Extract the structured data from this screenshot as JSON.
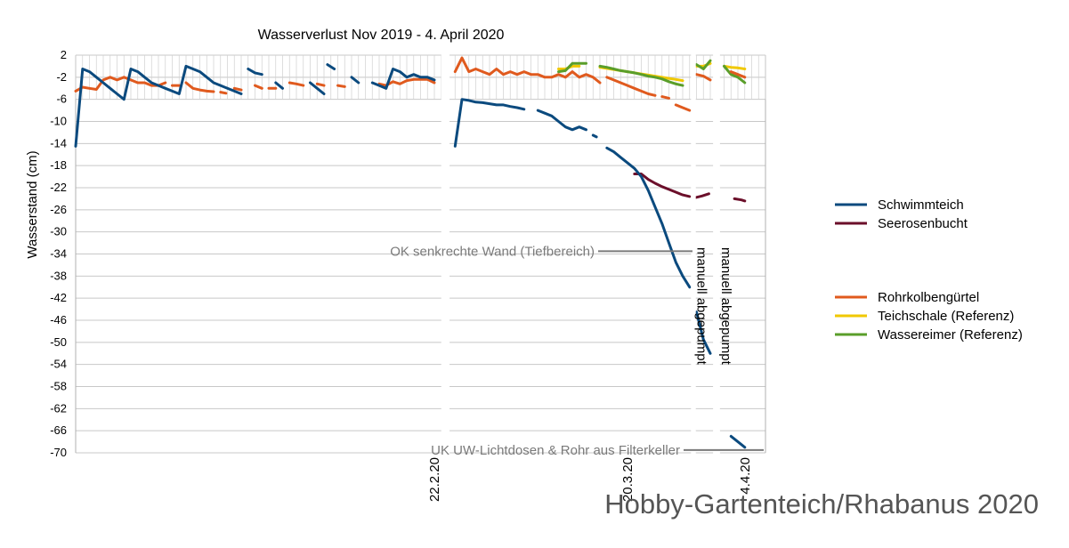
{
  "chart_data": {
    "type": "line",
    "title": "Wasserverlust Nov 2019 - 4. April 2020",
    "ylabel": "Wasserstand (cm)",
    "xlabel": "",
    "ylim": [
      -70,
      2
    ],
    "yticks": [
      2,
      -2,
      -6,
      -10,
      -14,
      -18,
      -22,
      -26,
      -30,
      -34,
      -38,
      -42,
      -46,
      -50,
      -54,
      -58,
      -62,
      -66,
      -70
    ],
    "grid": true,
    "legend_position": "right",
    "xlim": [
      0,
      100
    ],
    "x_tick_labels": [
      {
        "x": 52,
        "label": "22.2.20"
      },
      {
        "x": 80,
        "label": "20.3.20"
      },
      {
        "x": 97,
        "label": "4.4.20"
      }
    ],
    "series": [
      {
        "name": "Schwimmteich",
        "color": "#0b4a7e",
        "segments": [
          [
            [
              0,
              -14.5
            ],
            [
              1,
              -0.5
            ],
            [
              2,
              -1
            ],
            [
              3,
              -2
            ],
            [
              4,
              -3
            ],
            [
              5,
              -4
            ],
            [
              6,
              -5
            ],
            [
              7,
              -6
            ],
            [
              8,
              -0.5
            ],
            [
              9,
              -1
            ],
            [
              10,
              -2
            ],
            [
              11,
              -3
            ],
            [
              12,
              -3.5
            ],
            [
              13,
              -4
            ],
            [
              14,
              -4.5
            ],
            [
              15,
              -5
            ],
            [
              16,
              0
            ],
            [
              17,
              -0.5
            ],
            [
              18,
              -1
            ],
            [
              19,
              -2
            ],
            [
              20,
              -3
            ],
            [
              21,
              -3.5
            ],
            [
              22,
              -4
            ],
            [
              23,
              -4.5
            ],
            [
              24,
              -5
            ]
          ],
          [
            [
              25,
              -0.5
            ],
            [
              26,
              -1.2
            ],
            [
              27,
              -1.5
            ]
          ],
          [
            [
              29,
              -3
            ],
            [
              30,
              -4
            ]
          ],
          [
            [
              34,
              -3
            ],
            [
              35,
              -4
            ],
            [
              36,
              -5
            ]
          ],
          [
            [
              36.5,
              0.3
            ],
            [
              37.5,
              -0.5
            ]
          ],
          [
            [
              40,
              -2
            ],
            [
              41,
              -3
            ]
          ],
          [
            [
              43,
              -3
            ],
            [
              44,
              -3.5
            ],
            [
              45,
              -4
            ],
            [
              46,
              -0.5
            ],
            [
              47,
              -1
            ],
            [
              48,
              -2
            ],
            [
              49,
              -1.5
            ],
            [
              50,
              -2
            ],
            [
              51,
              -2
            ],
            [
              52,
              -2.5
            ]
          ],
          [
            [
              55,
              -14.5
            ],
            [
              56,
              -6
            ],
            [
              57,
              -6.2
            ],
            [
              58,
              -6.5
            ],
            [
              59,
              -6.6
            ],
            [
              60,
              -6.8
            ],
            [
              61,
              -7
            ],
            [
              62,
              -7
            ],
            [
              63,
              -7.3
            ],
            [
              64,
              -7.5
            ],
            [
              65,
              -7.8
            ]
          ],
          [
            [
              67,
              -8
            ],
            [
              68,
              -8.5
            ],
            [
              69,
              -9
            ],
            [
              70,
              -10
            ],
            [
              71,
              -11
            ],
            [
              72,
              -11.5
            ],
            [
              73,
              -11
            ],
            [
              74,
              -11.5
            ]
          ],
          [
            [
              75,
              -12.5
            ],
            [
              75.5,
              -12.8
            ]
          ],
          [
            [
              77,
              -14.8
            ],
            [
              78,
              -15.5
            ],
            [
              79,
              -16.5
            ],
            [
              80,
              -17.5
            ],
            [
              81,
              -18.5
            ],
            [
              82,
              -20
            ],
            [
              83,
              -22.5
            ],
            [
              84,
              -25.5
            ],
            [
              85,
              -28.5
            ],
            [
              86,
              -32
            ],
            [
              87,
              -35.5
            ],
            [
              88,
              -38
            ],
            [
              89,
              -40
            ]
          ],
          [
            [
              90,
              -44.5
            ],
            [
              91,
              -49.5
            ],
            [
              92,
              -52
            ]
          ],
          [
            [
              95,
              -67
            ],
            [
              96,
              -68
            ],
            [
              97,
              -69
            ]
          ]
        ]
      },
      {
        "name": "Seerosenbucht",
        "color": "#6b0f2a",
        "segments": [
          [
            [
              81,
              -19.5
            ],
            [
              82,
              -19.5
            ],
            [
              83,
              -20.5
            ],
            [
              84,
              -21.2
            ],
            [
              85,
              -21.8
            ],
            [
              86,
              -22.3
            ],
            [
              87,
              -22.8
            ],
            [
              88,
              -23.3
            ],
            [
              89,
              -23.6
            ]
          ],
          [
            [
              89.8,
              -23.8
            ],
            [
              90.8,
              -23.5
            ],
            [
              91.8,
              -23.1
            ]
          ],
          [
            [
              95.5,
              -24
            ],
            [
              96.5,
              -24.2
            ],
            [
              97,
              -24.4
            ]
          ]
        ]
      },
      {
        "name": "Rohrkolbengürtel",
        "color": "#e05a1e",
        "segments": [
          [
            [
              0,
              -4.5
            ],
            [
              1,
              -3.8
            ],
            [
              2,
              -4
            ],
            [
              3,
              -4.2
            ],
            [
              4,
              -2.5
            ],
            [
              5,
              -2
            ],
            [
              6,
              -2.5
            ],
            [
              7,
              -2
            ],
            [
              8,
              -2.5
            ],
            [
              9,
              -3
            ],
            [
              10,
              -3
            ],
            [
              11,
              -3.5
            ],
            [
              12,
              -3.5
            ],
            [
              13,
              -3
            ]
          ],
          [
            [
              14,
              -3.5
            ],
            [
              15,
              -3.5
            ]
          ],
          [
            [
              16,
              -3
            ],
            [
              17,
              -4
            ],
            [
              18,
              -4.3
            ],
            [
              19,
              -4.5
            ],
            [
              20,
              -4.6
            ]
          ],
          [
            [
              21,
              -4.7
            ],
            [
              21.8,
              -4.9
            ]
          ],
          [
            [
              23,
              -4
            ],
            [
              24,
              -4.3
            ]
          ],
          [
            [
              26,
              -3.5
            ],
            [
              27,
              -4
            ]
          ],
          [
            [
              28,
              -4
            ],
            [
              29,
              -4
            ]
          ],
          [
            [
              31,
              -3
            ],
            [
              32,
              -3.2
            ],
            [
              33,
              -3.5
            ]
          ],
          [
            [
              35,
              -3.2
            ],
            [
              36,
              -3.5
            ]
          ],
          [
            [
              38,
              -3.5
            ],
            [
              39,
              -3.7
            ]
          ],
          [
            [
              44,
              -3.2
            ],
            [
              45,
              -3.5
            ],
            [
              46,
              -2.8
            ],
            [
              47,
              -3.2
            ],
            [
              48,
              -2.6
            ],
            [
              49,
              -2.4
            ],
            [
              50,
              -2.4
            ],
            [
              51,
              -2.4
            ],
            [
              52,
              -3
            ]
          ],
          [
            [
              55,
              -1
            ],
            [
              56,
              1.5
            ],
            [
              57,
              -1
            ],
            [
              58,
              -0.5
            ],
            [
              59,
              -1
            ],
            [
              60,
              -1.5
            ],
            [
              61,
              -0.5
            ],
            [
              62,
              -1.5
            ],
            [
              63,
              -1
            ],
            [
              64,
              -1.5
            ],
            [
              65,
              -1
            ],
            [
              66,
              -1.5
            ],
            [
              67,
              -1.5
            ],
            [
              68,
              -2
            ],
            [
              69,
              -2
            ],
            [
              70,
              -1.5
            ],
            [
              71,
              -2
            ],
            [
              72,
              -1
            ],
            [
              73,
              -2
            ],
            [
              74,
              -1.5
            ],
            [
              75,
              -2
            ],
            [
              76,
              -3
            ]
          ],
          [
            [
              77,
              -2
            ],
            [
              78,
              -2.5
            ],
            [
              79,
              -3
            ],
            [
              80,
              -3.5
            ],
            [
              81,
              -4
            ],
            [
              82,
              -4.5
            ],
            [
              83,
              -5
            ],
            [
              84,
              -5.3
            ]
          ],
          [
            [
              85,
              -5.5
            ],
            [
              86,
              -5.8
            ]
          ],
          [
            [
              87,
              -7
            ],
            [
              88,
              -7.5
            ],
            [
              89,
              -8
            ]
          ],
          [
            [
              90,
              -1.5
            ],
            [
              91,
              -1.8
            ],
            [
              92,
              -2.5
            ]
          ],
          [
            [
              95,
              -1
            ],
            [
              96,
              -1.5
            ],
            [
              97,
              -2
            ]
          ]
        ]
      },
      {
        "name": "Teichschale (Referenz)",
        "color": "#f0c800",
        "segments": [
          [
            [
              70,
              -0.5
            ],
            [
              71,
              -0.5
            ],
            [
              72,
              0
            ],
            [
              73,
              0
            ]
          ],
          [
            [
              76,
              -0.2
            ],
            [
              77,
              -0.4
            ],
            [
              78,
              -0.6
            ],
            [
              79,
              -0.8
            ],
            [
              80,
              -1
            ],
            [
              81,
              -1.2
            ],
            [
              82,
              -1.4
            ],
            [
              83,
              -1.6
            ],
            [
              84,
              -1.8
            ],
            [
              85,
              -2
            ],
            [
              86,
              -2.2
            ],
            [
              87,
              -2.4
            ],
            [
              88,
              -2.6
            ]
          ],
          [
            [
              90,
              0
            ],
            [
              91,
              0
            ],
            [
              92,
              0.5
            ]
          ],
          [
            [
              94,
              0
            ],
            [
              95,
              -0.2
            ],
            [
              96,
              -0.3
            ],
            [
              97,
              -0.5
            ]
          ]
        ]
      },
      {
        "name": "Wassereimer (Referenz)",
        "color": "#5a9e2a",
        "segments": [
          [
            [
              70,
              -1
            ],
            [
              71,
              -0.8
            ],
            [
              72,
              0.5
            ],
            [
              73,
              0.5
            ],
            [
              74,
              0.5
            ]
          ],
          [
            [
              76,
              0
            ],
            [
              77,
              -0.2
            ],
            [
              78,
              -0.5
            ],
            [
              79,
              -0.8
            ],
            [
              80,
              -1
            ],
            [
              81,
              -1.2
            ],
            [
              82,
              -1.5
            ],
            [
              83,
              -1.8
            ],
            [
              84,
              -2
            ],
            [
              85,
              -2.3
            ],
            [
              86,
              -2.8
            ],
            [
              87,
              -3.2
            ],
            [
              88,
              -3.5
            ]
          ],
          [
            [
              90,
              0.3
            ],
            [
              91,
              -0.5
            ],
            [
              92,
              1
            ]
          ],
          [
            [
              94,
              0
            ],
            [
              95,
              -1.5
            ],
            [
              96,
              -2
            ],
            [
              97,
              -3
            ]
          ]
        ]
      }
    ],
    "annotations": [
      {
        "text": "OK senkrechte Wand (Tiefbereich)",
        "y": -33.5
      },
      {
        "text": "UK UW-Lichtdosen & Rohr aus Filterkeller",
        "y": -69.5
      },
      {
        "text": "manuell abgepumpt",
        "x": 89.5
      },
      {
        "text": "manuell abgepumpt",
        "x": 93
      }
    ],
    "watermark": "Hobby-Gartenteich/Rhabanus 2020"
  }
}
